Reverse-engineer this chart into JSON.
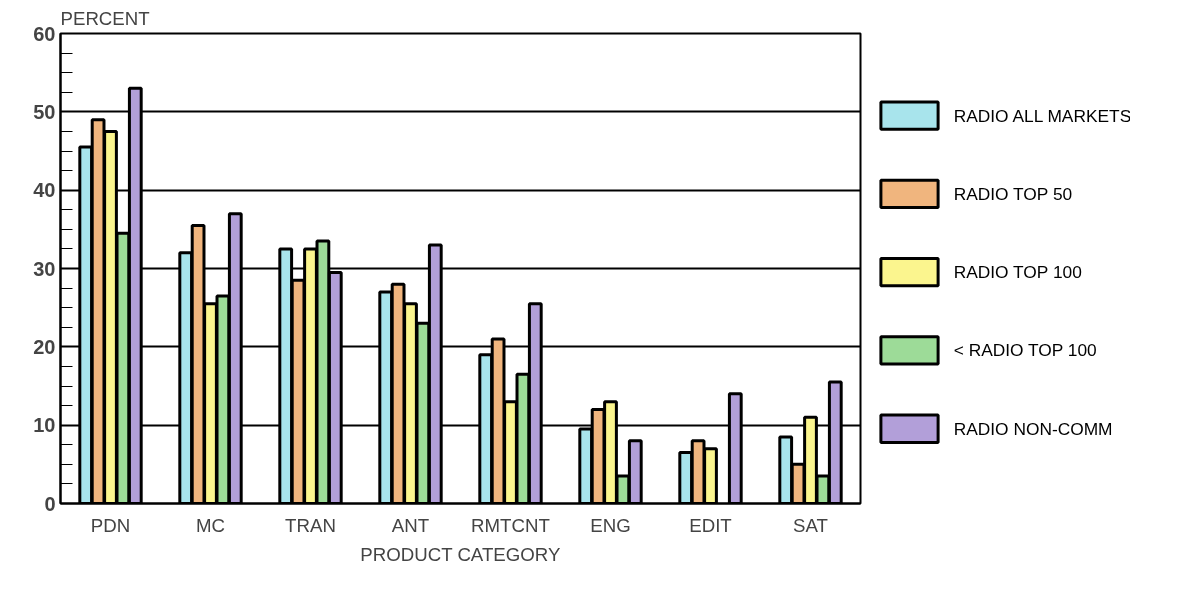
{
  "chart_data": {
    "type": "bar",
    "xlabel": "PRODUCT CATEGORY",
    "ylabel": "PERCENT",
    "categories": [
      "PDN",
      "MC",
      "TRAN",
      "ANT",
      "RMTCNT",
      "ENG",
      "EDIT",
      "SAT"
    ],
    "series": [
      {
        "name": "RADIO ALL MARKETS",
        "color": "#a8e4ec",
        "values": [
          45.5,
          32,
          32.5,
          27,
          19,
          9.5,
          6.5,
          8.5
        ]
      },
      {
        "name": "RADIO TOP 50",
        "color": "#f0b57e",
        "values": [
          49,
          35.5,
          28.5,
          28,
          21,
          12,
          8,
          5
        ]
      },
      {
        "name": "RADIO TOP 100",
        "color": "#fbf58e",
        "values": [
          47.5,
          25.5,
          32.5,
          25.5,
          13,
          13,
          7,
          11
        ]
      },
      {
        "name": "< RADIO TOP 100",
        "color": "#9ddb98",
        "values": [
          34.5,
          26.5,
          33.5,
          23,
          16.5,
          3.5,
          null,
          3.5
        ]
      },
      {
        "name": "RADIO NON-COMM",
        "color": "#b29fd9",
        "values": [
          53,
          37,
          29.5,
          33,
          25.5,
          8,
          14,
          15.5
        ]
      }
    ],
    "ylim": [
      0,
      60
    ],
    "yticks": [
      0,
      {
        "value": 2.5,
        "label": null
      },
      {
        "value": 5,
        "label": null
      },
      {
        "value": 7.5,
        "label": null
      },
      10,
      {
        "value": 12.5,
        "label": null
      },
      {
        "value": 15,
        "label": null
      },
      {
        "value": 17.5,
        "label": null
      },
      20,
      {
        "value": 22.5,
        "label": null
      },
      {
        "value": 25,
        "label": null
      },
      {
        "value": 27.5,
        "label": null
      },
      30,
      {
        "value": 32.5,
        "label": null
      },
      {
        "value": 35,
        "label": null
      },
      {
        "value": 37.5,
        "label": null
      },
      40,
      {
        "value": 42.5,
        "label": null
      },
      {
        "value": 45,
        "label": null
      },
      {
        "value": 47.5,
        "label": null
      },
      50,
      {
        "value": 52.5,
        "label": null
      },
      {
        "value": 55,
        "label": null
      },
      {
        "value": 57.5,
        "label": null
      },
      60
    ],
    "grid": "y",
    "legend": "right"
  }
}
